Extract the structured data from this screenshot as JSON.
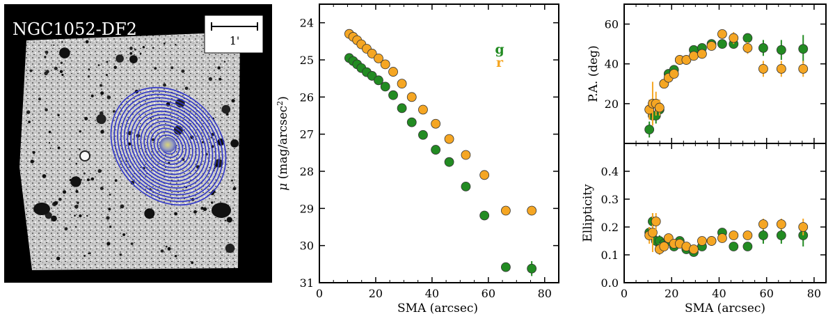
{
  "image_panel": {
    "title": "NGC1052-DF2",
    "scalebar_label": "1'"
  },
  "colors": {
    "g": "#228b22",
    "r": "#f5a623",
    "ellipse": "#2f35c8"
  },
  "chart_data": [
    {
      "type": "scatter",
      "panel": "surface-brightness",
      "xlabel": "SMA (arcsec)",
      "ylabel": "μ (mag/arcsec²)",
      "xlim": [
        0,
        85
      ],
      "ylim": [
        31,
        23.5
      ],
      "xticks": [
        0,
        20,
        40,
        60,
        80
      ],
      "yticks": [
        24,
        25,
        26,
        27,
        28,
        29,
        30,
        31
      ],
      "legend": [
        {
          "name": "g"
        },
        {
          "name": "r"
        }
      ],
      "series": [
        {
          "name": "g",
          "x": [
            10.6,
            12.0,
            13.4,
            14.9,
            16.8,
            18.7,
            21.0,
            23.4,
            26.2,
            29.3,
            32.8,
            36.8,
            41.3,
            46.1,
            52.0,
            58.6,
            66.2,
            75.4
          ],
          "y": [
            24.95,
            25.03,
            25.12,
            25.22,
            25.33,
            25.43,
            25.55,
            25.72,
            25.95,
            26.3,
            26.68,
            27.02,
            27.42,
            27.75,
            28.41,
            29.19,
            30.58,
            30.62
          ],
          "err": [
            0,
            0,
            0,
            0,
            0,
            0,
            0,
            0,
            0,
            0,
            0,
            0,
            0,
            0,
            0,
            0,
            0,
            0.2
          ]
        },
        {
          "name": "r",
          "x": [
            10.6,
            12.0,
            13.4,
            14.9,
            16.8,
            18.7,
            21.0,
            23.4,
            26.2,
            29.3,
            32.8,
            36.8,
            41.3,
            46.1,
            52.0,
            58.6,
            66.2,
            75.4
          ],
          "y": [
            24.3,
            24.38,
            24.47,
            24.58,
            24.7,
            24.83,
            24.96,
            25.12,
            25.32,
            25.64,
            26.0,
            26.34,
            26.72,
            27.13,
            27.56,
            28.1,
            29.06,
            29.06
          ],
          "err": [
            0,
            0,
            0,
            0,
            0,
            0,
            0,
            0,
            0,
            0,
            0,
            0,
            0,
            0,
            0,
            0,
            0,
            0
          ]
        }
      ]
    },
    {
      "type": "scatter",
      "panel": "position-angle",
      "xlabel": "",
      "ylabel": "P.A. (deg)",
      "xlim": [
        0,
        85
      ],
      "ylim": [
        0,
        70
      ],
      "xticks": [
        0,
        20,
        40,
        60,
        80
      ],
      "yticks": [
        20,
        40,
        60
      ],
      "series": [
        {
          "name": "g",
          "x": [
            10.6,
            12.0,
            13.4,
            14.9,
            16.8,
            18.7,
            21.0,
            23.4,
            26.2,
            29.3,
            32.8,
            36.8,
            41.3,
            46.1,
            52.0,
            58.6,
            66.2,
            75.4
          ],
          "y": [
            7,
            14,
            14,
            17,
            30,
            35,
            37,
            42,
            42,
            47,
            48,
            50,
            50,
            50,
            53,
            48,
            47,
            47.5
          ],
          "err": [
            4,
            4,
            4,
            3,
            2,
            2,
            2,
            2,
            2,
            2,
            2,
            2,
            2,
            2,
            2,
            4,
            5,
            7
          ]
        },
        {
          "name": "r",
          "x": [
            10.6,
            12.0,
            13.4,
            14.9,
            16.8,
            18.7,
            21.0,
            23.4,
            26.2,
            29.3,
            32.8,
            36.8,
            41.3,
            46.1,
            52.0,
            58.6,
            66.2,
            75.4
          ],
          "y": [
            17,
            20,
            20,
            18,
            30,
            33,
            35,
            42,
            42,
            44,
            45,
            49,
            55,
            53,
            48,
            37.5,
            37.5,
            37.5
          ],
          "err": [
            5,
            11,
            6,
            4,
            2,
            2,
            2,
            2,
            2,
            2,
            2,
            2,
            2,
            3,
            3,
            4,
            4,
            4
          ]
        }
      ]
    },
    {
      "type": "scatter",
      "panel": "ellipticity",
      "xlabel": "SMA (arcsec)",
      "ylabel": "Ellipticity",
      "xlim": [
        0,
        85
      ],
      "ylim": [
        0,
        0.5
      ],
      "xticks": [
        0,
        20,
        40,
        60,
        80
      ],
      "yticks": [
        0.0,
        0.1,
        0.2,
        0.3,
        0.4
      ],
      "series": [
        {
          "name": "g",
          "x": [
            10.6,
            12.0,
            13.4,
            14.9,
            16.8,
            18.7,
            21.0,
            23.4,
            26.2,
            29.3,
            32.8,
            36.8,
            41.3,
            46.1,
            52.0,
            58.6,
            66.2,
            75.4
          ],
          "y": [
            0.18,
            0.22,
            0.15,
            0.15,
            0.14,
            0.15,
            0.13,
            0.15,
            0.12,
            0.11,
            0.13,
            0.15,
            0.18,
            0.13,
            0.13,
            0.17,
            0.17,
            0.17
          ],
          "err": [
            0.02,
            0.03,
            0.02,
            0.02,
            0.01,
            0.01,
            0.01,
            0.01,
            0.01,
            0.01,
            0.01,
            0.01,
            0.01,
            0.01,
            0.01,
            0.03,
            0.03,
            0.04
          ]
        },
        {
          "name": "r",
          "x": [
            10.6,
            12.0,
            13.4,
            14.9,
            16.8,
            18.7,
            21.0,
            23.4,
            26.2,
            29.3,
            32.8,
            36.8,
            41.3,
            46.1,
            52.0,
            58.6,
            66.2,
            75.4
          ],
          "y": [
            0.17,
            0.18,
            0.22,
            0.12,
            0.13,
            0.16,
            0.14,
            0.14,
            0.13,
            0.12,
            0.15,
            0.15,
            0.16,
            0.17,
            0.17,
            0.21,
            0.21,
            0.2
          ],
          "err": [
            0.03,
            0.07,
            0.03,
            0.02,
            0.01,
            0.01,
            0.01,
            0.01,
            0.01,
            0.01,
            0.01,
            0.01,
            0.01,
            0.01,
            0.01,
            0.02,
            0.02,
            0.03
          ]
        }
      ]
    }
  ]
}
